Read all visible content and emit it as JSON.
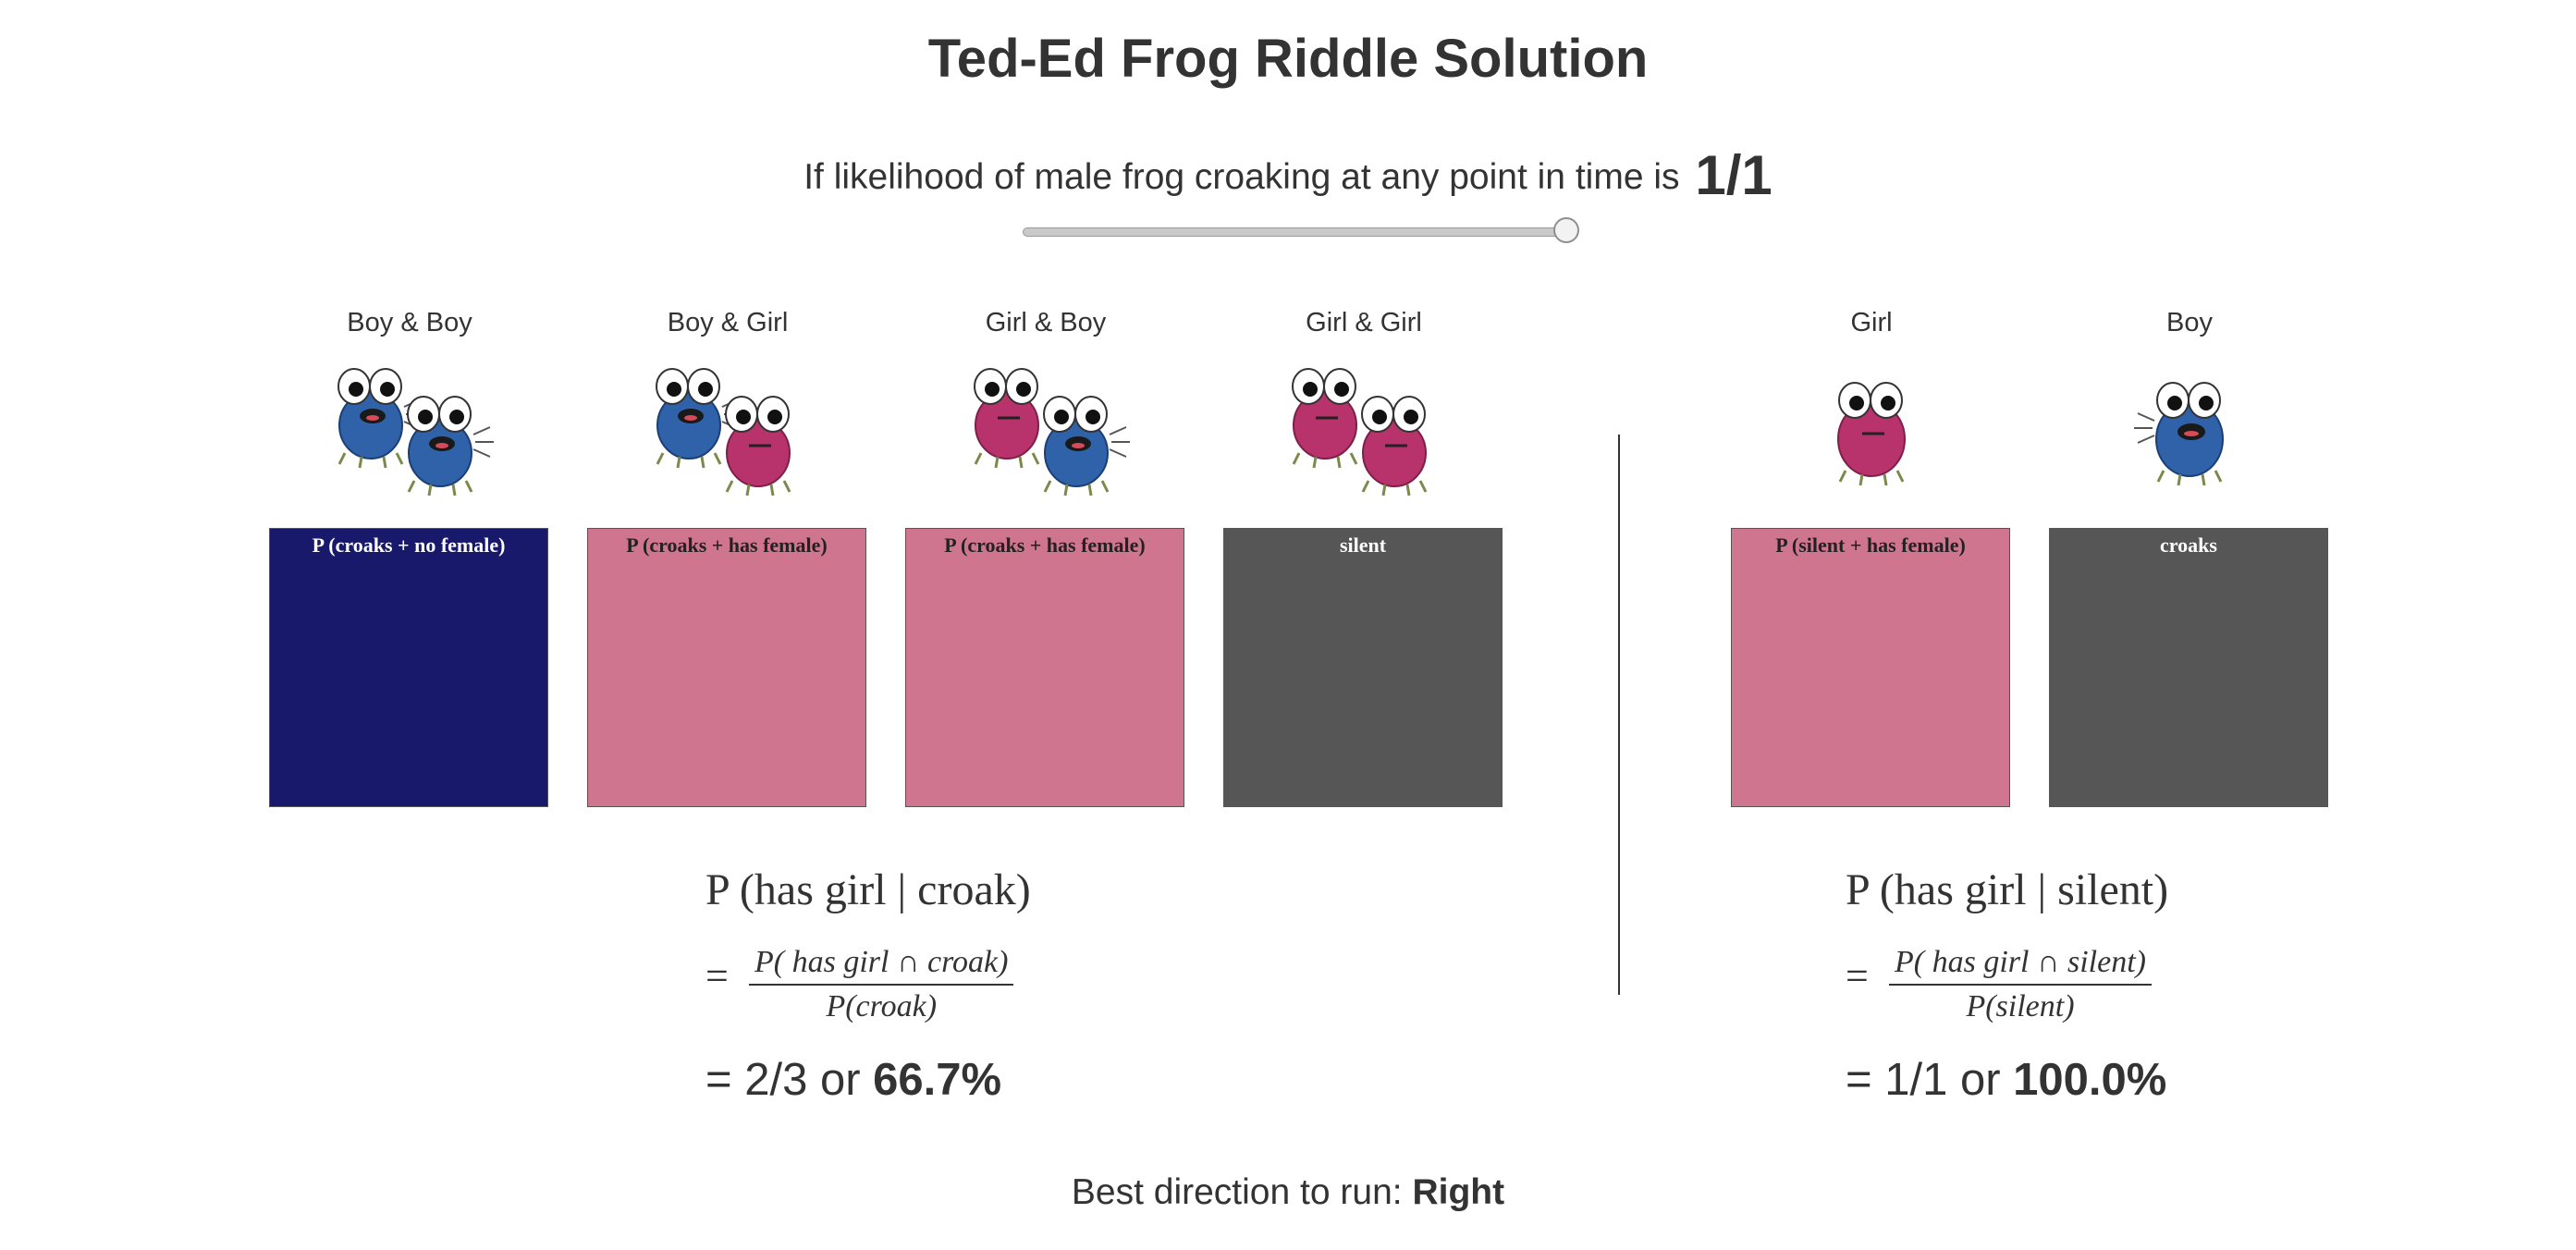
{
  "title": "Ted-Ed Frog Riddle Solution",
  "likelihood": {
    "text": "If likelihood of male frog croaking at any point in time is",
    "value": "1/1",
    "slider_fraction": 1.0
  },
  "columns": [
    {
      "label": "Boy & Boy",
      "frogs": [
        "blue-croaking",
        "blue-croaking"
      ],
      "box_label": "P (croaks + no female)",
      "box_color": "#18196b"
    },
    {
      "label": "Boy & Girl",
      "frogs": [
        "blue-croaking",
        "pink-silent"
      ],
      "box_label": "P (croaks + has female)",
      "box_color": "#cf7590"
    },
    {
      "label": "Girl & Boy",
      "frogs": [
        "pink-silent",
        "blue-croaking"
      ],
      "box_label": "P (croaks + has female)",
      "box_color": "#cf7590"
    },
    {
      "label": "Girl & Girl",
      "frogs": [
        "pink-silent",
        "pink-silent"
      ],
      "box_label": "silent",
      "box_color": "#565656"
    },
    {
      "label": "Girl",
      "frogs": [
        "pink-silent"
      ],
      "box_label": "P (silent + has female)",
      "box_color": "#cf7590"
    },
    {
      "label": "Boy",
      "frogs": [
        "blue-croaking"
      ],
      "box_label": "croaks",
      "box_color": "#565656"
    }
  ],
  "left_formula": {
    "title": "P (has girl | croak)",
    "eq": "=",
    "numerator": "P( has girl ∩ croak)",
    "denominator": "P(croak)",
    "result_prefix": "= 2/3 or",
    "result_value": "66.7%"
  },
  "right_formula": {
    "title": "P (has girl | silent)",
    "eq": "=",
    "numerator": "P( has girl ∩ silent)",
    "denominator": "P(silent)",
    "result_prefix": "= 1/1 or",
    "result_value": "100.0%"
  },
  "best_direction": {
    "label": "Best direction to run:",
    "value": "Right"
  },
  "colors": {
    "blue_frog": "#2f62a8",
    "pink_frog": "#b8336c",
    "text": "#333333"
  }
}
